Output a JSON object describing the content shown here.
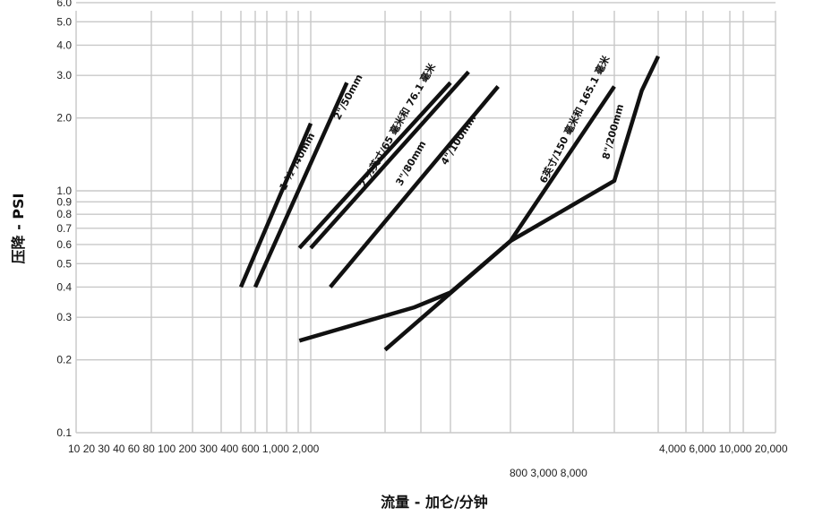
{
  "chart_data": {
    "type": "line",
    "title": "",
    "xlabel": "流量 - 加仑/分钟",
    "ylabel": "压降 - PSI",
    "y_scale": "log",
    "ylim": [
      0.1,
      6.0
    ],
    "grid": true,
    "y_ticks": [
      "0.1",
      "0.2",
      "0.3",
      "0.4",
      "0.5",
      "0.6",
      "0.7",
      "0.8",
      "0.9",
      "1.0",
      "2.0",
      "3.0",
      "4.0",
      "5.0",
      "6.0"
    ],
    "x_tick_labels": [
      "10",
      "20",
      "30",
      "40",
      "60",
      "80",
      "100",
      "200",
      "300",
      "400",
      "600",
      "1,000",
      "2,000"
    ],
    "x_tick_labels_secondary": [
      "800",
      "3,000",
      "8,000"
    ],
    "x_tick_labels_tertiary": [
      "4,000",
      "6,000",
      "10,000",
      "20,000"
    ],
    "series": [
      {
        "name": "1 ½\"/40mm",
        "points": [
          {
            "x": 300,
            "y": 0.4
          },
          {
            "x": 1000,
            "y": 1.9
          }
        ]
      },
      {
        "name": "2\"/50mm",
        "points": [
          {
            "x": 400,
            "y": 0.4
          },
          {
            "x": 1400,
            "y": 2.8
          }
        ]
      },
      {
        "name": "2 ½英寸/65 毫米和 76.1 毫米",
        "points": [
          {
            "x": 900,
            "y": 0.58
          },
          {
            "x": 3000,
            "y": 2.8
          }
        ]
      },
      {
        "name": "3\"/80mm",
        "points": [
          {
            "x": 1000,
            "y": 0.58
          },
          {
            "x": 3500,
            "y": 3.1
          }
        ]
      },
      {
        "name": "4\"/100mm",
        "points": [
          {
            "x": 1200,
            "y": 0.4
          },
          {
            "x": 4500,
            "y": 2.7
          }
        ]
      },
      {
        "name": "6英寸/150 毫米和 165.1 毫米",
        "points": [
          {
            "x": 2000,
            "y": 0.22
          },
          {
            "x": 5000,
            "y": 0.62
          },
          {
            "x": 10000,
            "y": 2.7
          }
        ]
      },
      {
        "name": "8\"/200mm",
        "points": [
          {
            "x": 900,
            "y": 0.24
          },
          {
            "x": 2400,
            "y": 0.33
          },
          {
            "x": 3000,
            "y": 0.38
          },
          {
            "x": 5000,
            "y": 0.62
          },
          {
            "x": 10000,
            "y": 1.1
          },
          {
            "x": 11500,
            "y": 2.6
          },
          {
            "x": 12500,
            "y": 3.6
          }
        ]
      }
    ]
  }
}
